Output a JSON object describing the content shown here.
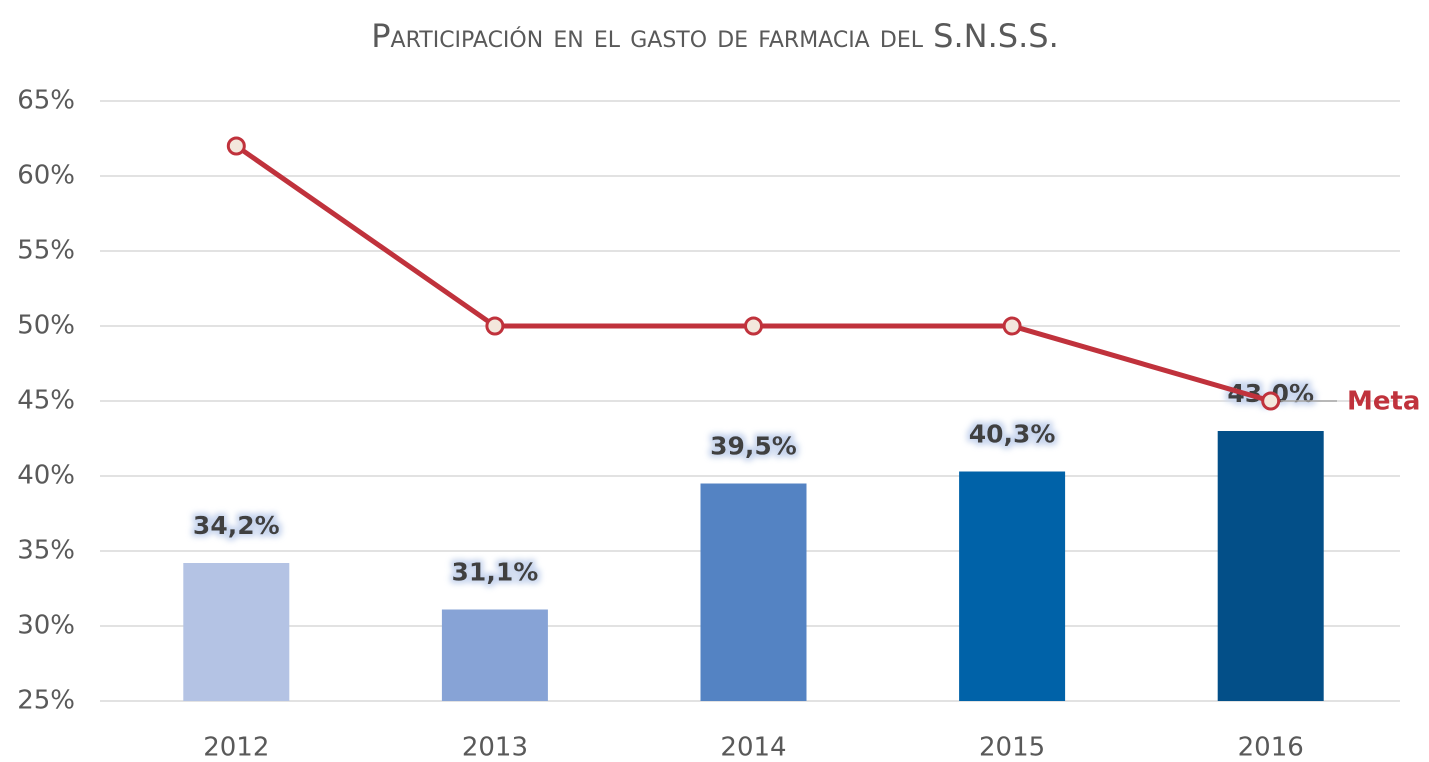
{
  "chart_data": {
    "type": "combo",
    "title": "Participación en el gasto de farmacia del S.N.S.S.",
    "categories": [
      "2012",
      "2013",
      "2014",
      "2015",
      "2016"
    ],
    "bars": {
      "values": [
        34.2,
        31.1,
        39.5,
        40.3,
        43.0
      ],
      "value_labels": [
        "34,2%",
        "31,1%",
        "39,5%",
        "40,3%",
        "43,0%"
      ],
      "colors": [
        "#b4c3e4",
        "#87a3d6",
        "#5483c3",
        "#0062a8",
        "#034f88"
      ]
    },
    "line": {
      "name": "Meta",
      "color": "#c0323c",
      "values": [
        62,
        50,
        50,
        50,
        45
      ]
    },
    "ylim": [
      25,
      65
    ],
    "yticks": [
      {
        "value": 25,
        "label": "25%"
      },
      {
        "value": 30,
        "label": "30%"
      },
      {
        "value": 35,
        "label": "35%"
      },
      {
        "value": 40,
        "label": "40%"
      },
      {
        "value": 45,
        "label": "45%"
      },
      {
        "value": 50,
        "label": "50%"
      },
      {
        "value": 55,
        "label": "55%"
      },
      {
        "value": 60,
        "label": "60%"
      },
      {
        "value": 65,
        "label": "65%"
      }
    ],
    "grid": true
  }
}
